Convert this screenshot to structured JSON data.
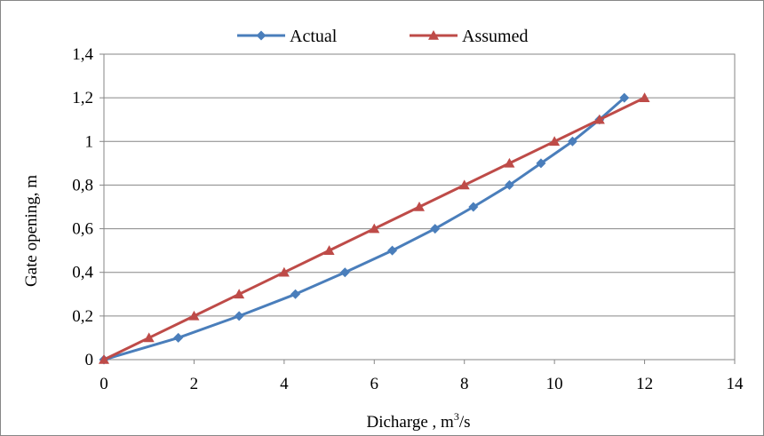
{
  "chart_data": {
    "type": "line",
    "xlabel": "Dicharge , m",
    "xlabel_sup": "3",
    "xlabel_tail": "/s",
    "ylabel": "Gate opening, m",
    "xlim": [
      0,
      14
    ],
    "ylim": [
      0,
      1.4
    ],
    "x_ticks": [
      "0",
      "2",
      "4",
      "6",
      "8",
      "10",
      "12",
      "14"
    ],
    "y_ticks": [
      "0",
      "0,2",
      "0,4",
      "0,6",
      "0,8",
      "1",
      "1,2",
      "1,4"
    ],
    "grid": "horizontal",
    "legend_position": "top",
    "series": [
      {
        "name": "Actual",
        "color": "#4a7ebb",
        "marker": "diamond",
        "x": [
          0,
          1.65,
          3.0,
          4.25,
          5.35,
          6.4,
          7.35,
          8.2,
          9.0,
          9.7,
          10.4,
          11.0,
          11.55
        ],
        "y": [
          0,
          0.1,
          0.2,
          0.3,
          0.4,
          0.5,
          0.6,
          0.7,
          0.8,
          0.9,
          1.0,
          1.1,
          1.2
        ]
      },
      {
        "name": "Assumed",
        "color": "#be4b48",
        "marker": "triangle",
        "x": [
          0,
          1,
          2,
          3,
          4,
          5,
          6,
          7,
          8,
          9,
          10,
          11,
          12
        ],
        "y": [
          0,
          0.1,
          0.2,
          0.3,
          0.4,
          0.5,
          0.6,
          0.7,
          0.8,
          0.9,
          1.0,
          1.1,
          1.2
        ]
      }
    ]
  }
}
